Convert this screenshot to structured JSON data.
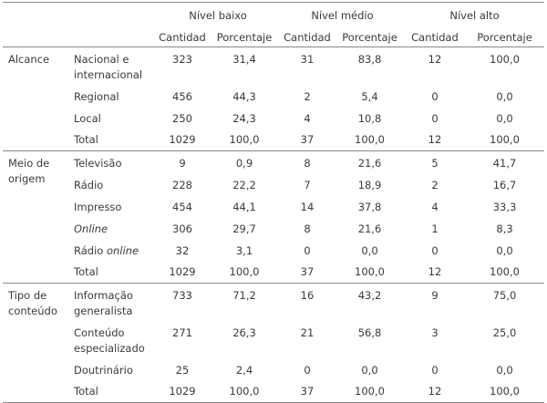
{
  "header": {
    "groups": [
      "Nível baixo",
      "Nível médio",
      "Nível alto"
    ],
    "columns": [
      "Cantidad",
      "Porcentaje",
      "Cantidad",
      "Porcentaje",
      "Cantidad",
      "Porcentaje"
    ]
  },
  "sections": [
    {
      "category": "Alcance",
      "rows": [
        {
          "label": "Nacional e internacional",
          "values": [
            "323",
            "31,4",
            "31",
            "83,8",
            "12",
            "100,0"
          ]
        },
        {
          "label": "Regional",
          "values": [
            "456",
            "44,3",
            "2",
            "5,4",
            "0",
            "0,0"
          ]
        },
        {
          "label": "Local",
          "values": [
            "250",
            "24,3",
            "4",
            "10,8",
            "0",
            "0,0"
          ]
        },
        {
          "label": "Total",
          "values": [
            "1029",
            "100,0",
            "37",
            "100,0",
            "12",
            "100,0"
          ]
        }
      ]
    },
    {
      "category": "Meio de origem",
      "rows": [
        {
          "label": "Televisão",
          "values": [
            "9",
            "0,9",
            "8",
            "21,6",
            "5",
            "41,7"
          ]
        },
        {
          "label": "Rádio",
          "values": [
            "228",
            "22,2",
            "7",
            "18,9",
            "2",
            "16,7"
          ]
        },
        {
          "label": "Impresso",
          "values": [
            "454",
            "44,1",
            "14",
            "37,8",
            "4",
            "33,3"
          ]
        },
        {
          "label": "Online",
          "values": [
            "306",
            "29,7",
            "8",
            "21,6",
            "1",
            "8,3"
          ]
        },
        {
          "label": "Rádio online",
          "values": [
            "32",
            "3,1",
            "0",
            "0,0",
            "0",
            "0,0"
          ]
        },
        {
          "label": "Total",
          "values": [
            "1029",
            "100,0",
            "37",
            "100,0",
            "12",
            "100,0"
          ]
        }
      ]
    },
    {
      "category": "Tipo de conteúdo",
      "rows": [
        {
          "label": "Informação generalista",
          "values": [
            "733",
            "71,2",
            "16",
            "43,2",
            "9",
            "75,0"
          ]
        },
        {
          "label": "Conteúdo especializado",
          "values": [
            "271",
            "26,3",
            "21",
            "56,8",
            "3",
            "25,0"
          ]
        },
        {
          "label": "Doutrinário",
          "values": [
            "25",
            "2,4",
            "0",
            "0,0",
            "0",
            "0,0"
          ]
        },
        {
          "label": "Total",
          "values": [
            "1029",
            "100,0",
            "37",
            "100,0",
            "12",
            "100,0"
          ]
        }
      ]
    }
  ]
}
